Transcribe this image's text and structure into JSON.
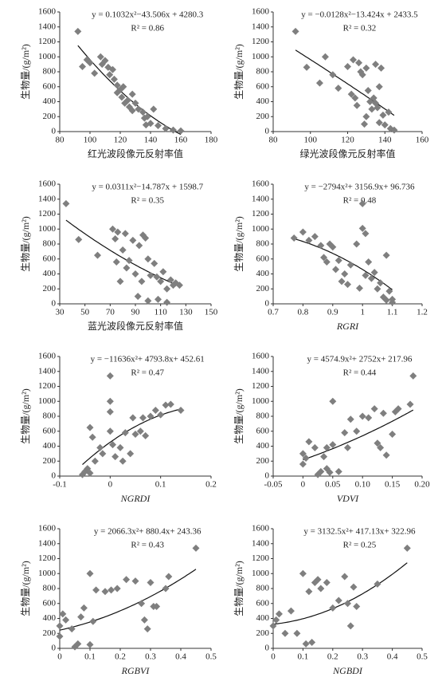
{
  "chart_data": [
    {
      "type": "scatter",
      "equation": "y = 0.1032x²−43.506x + 4280.3",
      "r_squared": "R² = 0.86",
      "fit": {
        "coefficients": [
          0.1032,
          -43.506,
          4280.3
        ]
      },
      "x_label": "红光波段像元反射率值",
      "x_label_style": "normal",
      "y_label": "生物量/(g/m²)",
      "color": "#7f7f7f",
      "x": [
        92,
        95,
        98,
        100,
        103,
        107,
        108,
        110,
        112,
        113,
        115,
        116,
        118,
        118,
        120,
        121,
        122,
        123,
        125,
        126,
        128,
        128,
        130,
        132,
        135,
        136,
        137,
        138,
        140,
        142,
        145,
        150,
        155,
        160
      ],
      "values": [
        1340,
        870,
        960,
        920,
        780,
        1000,
        900,
        950,
        860,
        760,
        830,
        700,
        620,
        520,
        560,
        460,
        600,
        380,
        420,
        330,
        500,
        280,
        380,
        300,
        260,
        180,
        90,
        200,
        110,
        300,
        80,
        40,
        20,
        10
      ],
      "xlim": [
        80,
        180
      ],
      "xticks": [
        80,
        100,
        120,
        140,
        160,
        180
      ],
      "ylim": [
        0,
        1600
      ],
      "yticks": [
        0,
        200,
        400,
        600,
        800,
        1000,
        1200,
        1400,
        1600
      ]
    },
    {
      "type": "scatter",
      "equation": "y = −0.0128x²−13.424x + 2433.5",
      "r_squared": "R² = 0.32",
      "fit": {
        "coefficients": [
          -0.0128,
          -13.424,
          2433.5
        ]
      },
      "x_label": "绿光波段像元反射率值",
      "x_label_style": "normal",
      "y_label": "生物量/(g/m²)",
      "color": "#7f7f7f",
      "x": [
        92,
        98,
        105,
        108,
        112,
        115,
        120,
        122,
        123,
        124,
        125,
        126,
        127,
        128,
        129,
        130,
        130,
        131,
        132,
        133,
        134,
        135,
        135,
        136,
        137,
        137,
        138,
        139,
        140,
        142,
        143,
        145
      ],
      "values": [
        1340,
        860,
        650,
        1000,
        760,
        580,
        870,
        500,
        960,
        450,
        350,
        920,
        800,
        760,
        100,
        200,
        850,
        550,
        400,
        300,
        450,
        900,
        380,
        320,
        600,
        120,
        850,
        220,
        90,
        260,
        40,
        20
      ],
      "xlim": [
        80,
        160
      ],
      "xticks": [
        80,
        100,
        120,
        140,
        160
      ],
      "ylim": [
        0,
        1600
      ],
      "yticks": [
        0,
        200,
        400,
        600,
        800,
        1000,
        1200,
        1400,
        1600
      ]
    },
    {
      "type": "scatter",
      "equation": "y = 0.0311x²−14.787x + 1598.7",
      "r_squared": "R² = 0.35",
      "fit": {
        "coefficients": [
          0.0311,
          -14.787,
          1598.7
        ]
      },
      "x_label": "蓝光波段像元反射率值",
      "x_label_style": "normal",
      "y_label": "生物量/(g/m²)",
      "color": "#7f7f7f",
      "x": [
        35,
        45,
        60,
        72,
        74,
        75,
        76,
        78,
        80,
        82,
        83,
        85,
        88,
        90,
        92,
        93,
        95,
        96,
        98,
        100,
        100,
        102,
        105,
        107,
        108,
        110,
        112,
        115,
        115,
        118,
        120,
        122,
        125
      ],
      "values": [
        1340,
        860,
        650,
        1000,
        870,
        560,
        960,
        300,
        720,
        940,
        480,
        580,
        850,
        400,
        100,
        780,
        300,
        920,
        880,
        600,
        40,
        380,
        540,
        360,
        60,
        300,
        430,
        200,
        20,
        320,
        250,
        280,
        250
      ],
      "xlim": [
        30,
        150
      ],
      "xticks": [
        30,
        50,
        70,
        90,
        110,
        130,
        150
      ],
      "ylim": [
        0,
        1600
      ],
      "yticks": [
        0,
        200,
        400,
        600,
        800,
        1000,
        1200,
        1400,
        1600
      ]
    },
    {
      "type": "scatter",
      "equation": "y = −2794x²+ 3156.9x+ 96.736",
      "r_squared": "R² = 0.48",
      "fit": {
        "coefficients": [
          -2794,
          3156.9,
          96.736
        ]
      },
      "x_label": "RGRI",
      "x_label_style": "italic",
      "y_label": "生物量/(g/m²)",
      "color": "#7f7f7f",
      "x": [
        0.77,
        0.8,
        0.82,
        0.84,
        0.86,
        0.87,
        0.88,
        0.89,
        0.9,
        0.91,
        0.92,
        0.93,
        0.94,
        0.95,
        0.96,
        0.98,
        0.99,
        1.0,
        1.0,
        1.01,
        1.01,
        1.02,
        1.03,
        1.04,
        1.05,
        1.06,
        1.07,
        1.08,
        1.08,
        1.09,
        1.1,
        1.1
      ],
      "values": [
        880,
        960,
        850,
        900,
        780,
        620,
        560,
        800,
        760,
        460,
        580,
        300,
        400,
        260,
        520,
        800,
        210,
        1340,
        1010,
        380,
        940,
        560,
        340,
        420,
        200,
        280,
        90,
        650,
        50,
        170,
        20,
        60
      ],
      "xlim": [
        0.7,
        1.2
      ],
      "xticks": [
        0.7,
        0.8,
        0.9,
        1.0,
        1.1,
        1.2
      ],
      "ylim": [
        0,
        1600
      ],
      "yticks": [
        0,
        200,
        400,
        600,
        800,
        1000,
        1200,
        1400,
        1600
      ]
    },
    {
      "type": "scatter",
      "equation": "y = −11636x²+ 4793.8x+ 452.61",
      "r_squared": "R² = 0.47",
      "fit": {
        "coefficients": [
          -11636,
          4793.8,
          452.61
        ]
      },
      "x_label": "NGRDI",
      "x_label_style": "italic",
      "y_label": "生物量/(g/m²)",
      "color": "#7f7f7f",
      "x": [
        -0.055,
        -0.05,
        -0.045,
        -0.04,
        -0.04,
        -0.035,
        -0.03,
        -0.02,
        -0.015,
        0,
        0,
        0,
        0,
        0.005,
        0.01,
        0.02,
        0.025,
        0.03,
        0.04,
        0.045,
        0.05,
        0.06,
        0.065,
        0.07,
        0.08,
        0.09,
        0.1,
        0.11,
        0.12,
        0.14
      ],
      "values": [
        20,
        60,
        100,
        40,
        650,
        520,
        200,
        380,
        300,
        860,
        1000,
        1340,
        600,
        420,
        260,
        380,
        200,
        580,
        300,
        780,
        560,
        600,
        780,
        540,
        800,
        880,
        820,
        950,
        960,
        880
      ],
      "xlim": [
        -0.1,
        0.2
      ],
      "xticks": [
        -0.1,
        0,
        0.1,
        0.2
      ],
      "ylim": [
        0,
        1600
      ],
      "yticks": [
        0,
        200,
        400,
        600,
        800,
        1000,
        1200,
        1400,
        1600
      ]
    },
    {
      "type": "scatter",
      "equation": "y = 4574.9x²+ 2752x+ 217.96",
      "r_squared": "R² = 0.44",
      "fit": {
        "coefficients": [
          4574.9,
          2752,
          217.96
        ]
      },
      "x_label": "VDVI",
      "x_label_style": "italic",
      "y_label": "生物量/(g/m²)",
      "color": "#7f7f7f",
      "x": [
        0,
        0,
        0.005,
        0.01,
        0.02,
        0.025,
        0.03,
        0.035,
        0.04,
        0.04,
        0.045,
        0.05,
        0.05,
        0.06,
        0.07,
        0.075,
        0.08,
        0.09,
        0.1,
        0.11,
        0.12,
        0.125,
        0.13,
        0.135,
        0.14,
        0.15,
        0.155,
        0.16,
        0.18,
        0.185
      ],
      "values": [
        160,
        300,
        240,
        460,
        380,
        20,
        60,
        260,
        100,
        380,
        50,
        1000,
        420,
        60,
        580,
        380,
        760,
        600,
        800,
        780,
        900,
        440,
        380,
        840,
        280,
        560,
        860,
        900,
        960,
        1340
      ],
      "xlim": [
        -0.05,
        0.2
      ],
      "xticks": [
        -0.05,
        0,
        0.05,
        {
          "value": 0.1,
          "label": "0.10"
        },
        0.15,
        {
          "value": 0.2,
          "label": "0.20"
        }
      ],
      "ylim": [
        0,
        1600
      ],
      "yticks": [
        0,
        200,
        400,
        600,
        800,
        1000,
        1200,
        1400,
        1600
      ]
    },
    {
      "type": "scatter",
      "equation": "y = 2066.3x²+ 880.4x+ 243.36",
      "r_squared": "R² = 0.43",
      "fit": {
        "coefficients": [
          2066.3,
          880.4,
          243.36
        ]
      },
      "x_label": "RGBVI",
      "x_label_style": "italic",
      "y_label": "生物量/(g/m²)",
      "color": "#7f7f7f",
      "x": [
        0,
        0,
        0.01,
        0.02,
        0.04,
        0.05,
        0.06,
        0.07,
        0.08,
        0.1,
        0.1,
        0.11,
        0.12,
        0.15,
        0.17,
        0.19,
        0.22,
        0.25,
        0.27,
        0.28,
        0.29,
        0.3,
        0.31,
        0.32,
        0.35,
        0.36,
        0.45
      ],
      "values": [
        160,
        300,
        460,
        380,
        260,
        20,
        60,
        420,
        540,
        1000,
        50,
        360,
        780,
        760,
        780,
        800,
        920,
        900,
        600,
        380,
        260,
        880,
        560,
        560,
        800,
        960,
        1340
      ],
      "xlim": [
        0,
        0.5
      ],
      "xticks": [
        0,
        0.1,
        0.2,
        0.3,
        0.4,
        0.5
      ],
      "ylim": [
        0,
        1600
      ],
      "yticks": [
        0,
        200,
        400,
        600,
        800,
        1000,
        1200,
        1400,
        1600
      ]
    },
    {
      "type": "scatter",
      "equation": "y = 3132.5x²+ 417.13x+ 322.96",
      "r_squared": "R² = 0.25",
      "fit": {
        "coefficients": [
          3132.5,
          417.13,
          322.96
        ]
      },
      "x_label": "NGBDI",
      "x_label_style": "italic",
      "y_label": "生物量/(g/m²)",
      "color": "#7f7f7f",
      "x": [
        0,
        0.01,
        0.02,
        0.04,
        0.06,
        0.08,
        0.1,
        0.11,
        0.12,
        0.13,
        0.14,
        0.15,
        0.16,
        0.18,
        0.2,
        0.22,
        0.24,
        0.25,
        0.26,
        0.27,
        0.28,
        0.35,
        0.45
      ],
      "values": [
        300,
        380,
        460,
        200,
        500,
        200,
        1000,
        60,
        760,
        80,
        880,
        920,
        800,
        880,
        540,
        640,
        960,
        600,
        300,
        820,
        560,
        860,
        1340
      ],
      "xlim": [
        0,
        0.5
      ],
      "xticks": [
        0,
        0.1,
        0.2,
        0.3,
        0.4,
        0.5
      ],
      "ylim": [
        0,
        1600
      ],
      "yticks": [
        0,
        200,
        400,
        600,
        800,
        1000,
        1200,
        1400,
        1600
      ]
    }
  ]
}
